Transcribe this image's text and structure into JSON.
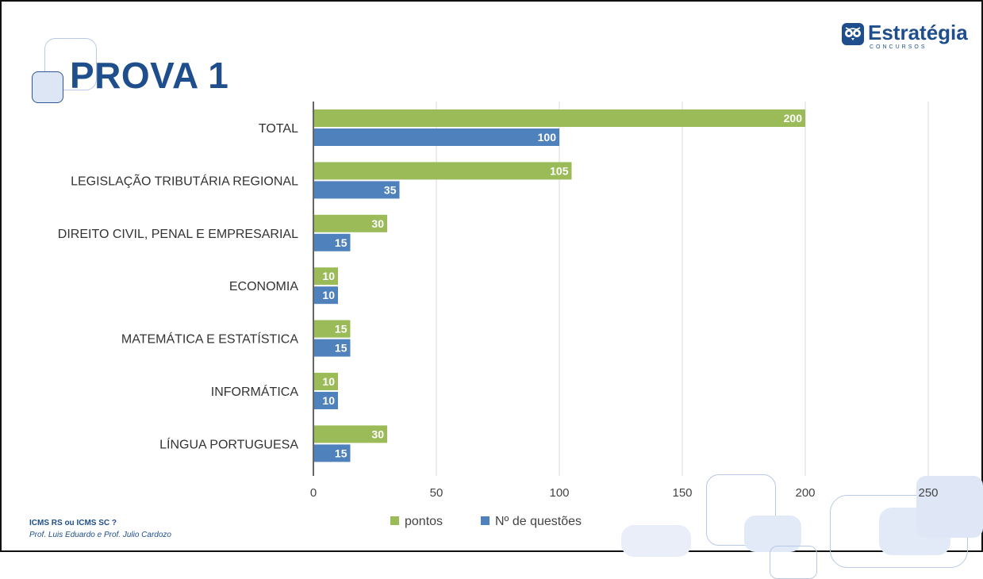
{
  "slide": {
    "title": "PROVA 1",
    "footer_line1": "ICMS RS ou ICMS SC ?",
    "footer_line2": "Prof. Luis Eduardo e Prof. Julio Cardozo"
  },
  "logo": {
    "name": "Estratégia",
    "sub": "CONCURSOS",
    "icon": "owl-icon"
  },
  "colors": {
    "pontos": "#9bbb59",
    "questoes": "#4f81bd",
    "brand": "#1f4e8c"
  },
  "chart_data": {
    "type": "bar",
    "orientation": "horizontal",
    "categories": [
      "TOTAL",
      "LEGISLAÇÃO TRIBUTÁRIA REGIONAL",
      "DIREITO CIVIL, PENAL E EMPRESARIAL",
      "ECONOMIA",
      "MATEMÁTICA E ESTATÍSTICA",
      "INFORMÁTICA",
      "LÍNGUA PORTUGUESA"
    ],
    "series": [
      {
        "name": "pontos",
        "values": [
          200,
          105,
          30,
          10,
          15,
          10,
          30
        ]
      },
      {
        "name": "Nº de questões",
        "values": [
          100,
          35,
          15,
          10,
          15,
          10,
          15
        ]
      }
    ],
    "xlim": [
      0,
      250
    ],
    "xticks": [
      "0",
      "50",
      "100",
      "150",
      "200",
      "250"
    ],
    "grid": true,
    "legend": "bottom"
  }
}
